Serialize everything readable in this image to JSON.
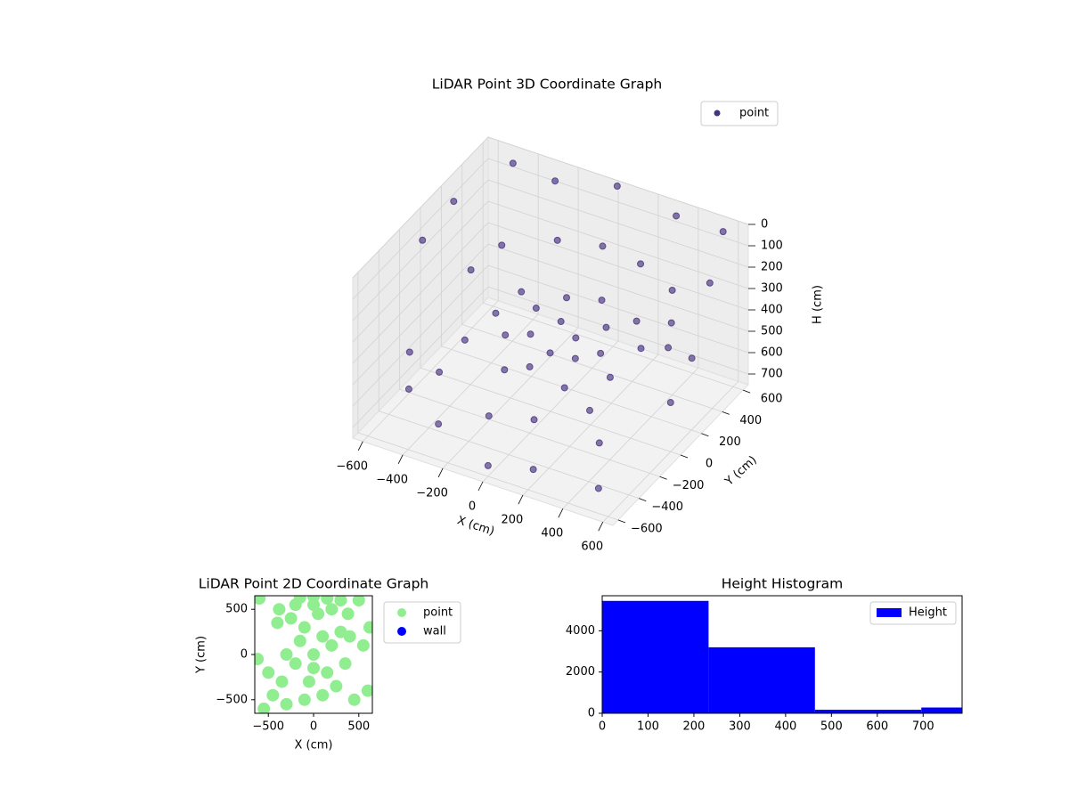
{
  "chart_data": [
    {
      "type": "scatter3d",
      "title": "LiDAR Point 3D Coordinate Graph",
      "xlabel": "X (cm)",
      "ylabel": "Y (cm)",
      "zlabel": "H (cm)",
      "xlim": [
        -650,
        650
      ],
      "ylim": [
        -650,
        650
      ],
      "zlim": [
        0,
        750
      ],
      "z_inverted": true,
      "grid": true,
      "legend": "upper right",
      "xticks": [
        {
          "value": -600,
          "label": "−600"
        },
        {
          "value": -400,
          "label": "−400"
        },
        {
          "value": -200,
          "label": "−200"
        },
        0,
        200,
        400,
        600
      ],
      "yticks": [
        {
          "value": -600,
          "label": "−600"
        },
        {
          "value": -400,
          "label": "−400"
        },
        {
          "value": -200,
          "label": "−200"
        },
        0,
        200,
        400,
        600
      ],
      "zticks": [
        0,
        100,
        200,
        300,
        400,
        500,
        600,
        700
      ],
      "series": [
        {
          "name": "point",
          "color": "#46337e",
          "x": [
            0,
            100,
            -100,
            50,
            -150,
            200,
            150,
            -50,
            250,
            -200,
            0,
            100,
            -250,
            300,
            -300,
            350,
            200,
            -100,
            400,
            -350,
            -400,
            -200,
            0,
            200,
            400,
            500,
            -450,
            -500,
            -300,
            0,
            300,
            550,
            -640,
            -640,
            640,
            640,
            -500,
            -300,
            0,
            200,
            400,
            500,
            -600,
            600,
            550,
            300,
            -100,
            100,
            -400
          ],
          "y": [
            100,
            50,
            0,
            -100,
            150,
            150,
            -50,
            250,
            0,
            -50,
            -200,
            300,
            200,
            250,
            50,
            -100,
            -250,
            -250,
            100,
            -150,
            300,
            450,
            500,
            480,
            400,
            200,
            100,
            600,
            620,
            640,
            630,
            600,
            300,
            0,
            300,
            -100,
            -400,
            -500,
            -600,
            -550,
            -300,
            -500,
            -200,
            0,
            300,
            -200,
            -400,
            -350,
            -300
          ],
          "z": [
            380,
            400,
            420,
            410,
            390,
            370,
            430,
            360,
            400,
            430,
            440,
            350,
            370,
            360,
            410,
            430,
            450,
            460,
            380,
            450,
            250,
            240,
            230,
            240,
            260,
            280,
            280,
            50,
            80,
            20,
            60,
            40,
            120,
            150,
            100,
            200,
            600,
            650,
            700,
            680,
            620,
            700,
            560,
            520,
            480,
            550,
            600,
            580,
            540
          ]
        }
      ]
    },
    {
      "type": "scatter",
      "title": "LiDAR Point 2D Coordinate Graph",
      "xlabel": "X (cm)",
      "ylabel": "Y (cm)",
      "xlim": [
        -650,
        650
      ],
      "ylim": [
        -650,
        650
      ],
      "legend": "outside upper left",
      "xticks": [
        {
          "value": -500,
          "label": "−500"
        },
        0,
        500
      ],
      "yticks": [
        {
          "value": -500,
          "label": "−500"
        },
        0,
        500
      ],
      "series": [
        {
          "name": "point",
          "color": "#90ee90",
          "x": [
            0,
            100,
            -100,
            200,
            -200,
            50,
            -50,
            150,
            -150,
            300,
            -300,
            0,
            250,
            -250,
            100,
            -100,
            350,
            -350,
            0,
            200,
            -200,
            400,
            -400,
            500,
            -550,
            600,
            -600,
            550,
            -500,
            620,
            -620,
            0,
            300,
            -300,
            450,
            -450,
            150,
            -150,
            380,
            -380
          ],
          "y": [
            0,
            200,
            300,
            100,
            -100,
            450,
            -300,
            -200,
            150,
            250,
            0,
            550,
            -350,
            400,
            -450,
            -500,
            -100,
            -300,
            -150,
            500,
            550,
            200,
            350,
            600,
            -600,
            -400,
            620,
            100,
            -200,
            300,
            -50,
            640,
            600,
            -550,
            -500,
            -450,
            620,
            630,
            450,
            500
          ]
        },
        {
          "name": "wall",
          "color": "#0000ff",
          "x": [],
          "y": []
        }
      ]
    },
    {
      "type": "histogram",
      "title": "Height Histogram",
      "legend": "upper right",
      "bins": [
        0,
        232,
        464,
        696,
        928
      ],
      "series": [
        {
          "name": "Height",
          "color": "#0000ff",
          "values": [
            5450,
            3200,
            170,
            280
          ]
        }
      ],
      "xlim": [
        0,
        785
      ],
      "ylim": [
        0,
        5700
      ],
      "xticks": [
        0,
        100,
        200,
        300,
        400,
        500,
        600,
        700
      ],
      "yticks": [
        0,
        2000,
        4000
      ]
    }
  ]
}
